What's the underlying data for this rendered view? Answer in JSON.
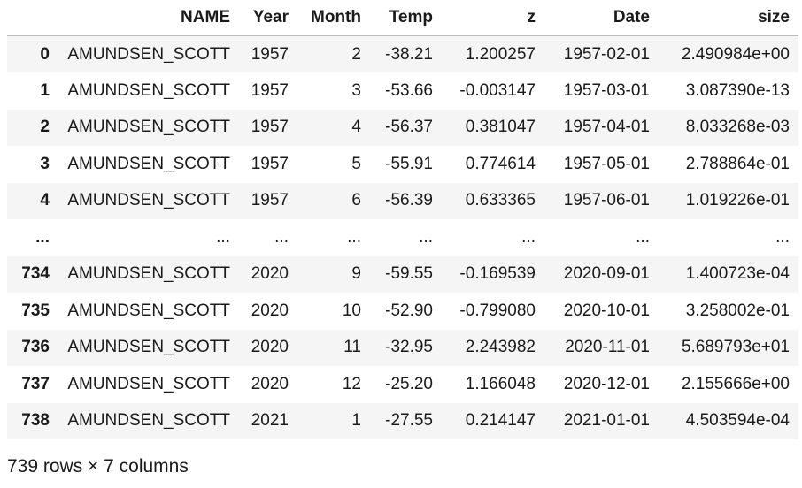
{
  "table": {
    "index_header": "",
    "columns": [
      "NAME",
      "Year",
      "Month",
      "Temp",
      "z",
      "Date",
      "size"
    ],
    "rows": [
      {
        "index": "0",
        "cells": [
          "AMUNDSEN_SCOTT",
          "1957",
          "2",
          "-38.21",
          "1.200257",
          "1957-02-01",
          "2.490984e+00"
        ]
      },
      {
        "index": "1",
        "cells": [
          "AMUNDSEN_SCOTT",
          "1957",
          "3",
          "-53.66",
          "-0.003147",
          "1957-03-01",
          "3.087390e-13"
        ]
      },
      {
        "index": "2",
        "cells": [
          "AMUNDSEN_SCOTT",
          "1957",
          "4",
          "-56.37",
          "0.381047",
          "1957-04-01",
          "8.033268e-03"
        ]
      },
      {
        "index": "3",
        "cells": [
          "AMUNDSEN_SCOTT",
          "1957",
          "5",
          "-55.91",
          "0.774614",
          "1957-05-01",
          "2.788864e-01"
        ]
      },
      {
        "index": "4",
        "cells": [
          "AMUNDSEN_SCOTT",
          "1957",
          "6",
          "-56.39",
          "0.633365",
          "1957-06-01",
          "1.019226e-01"
        ]
      },
      {
        "index": "...",
        "cells": [
          "...",
          "...",
          "...",
          "...",
          "...",
          "...",
          "..."
        ]
      },
      {
        "index": "734",
        "cells": [
          "AMUNDSEN_SCOTT",
          "2020",
          "9",
          "-59.55",
          "-0.169539",
          "2020-09-01",
          "1.400723e-04"
        ]
      },
      {
        "index": "735",
        "cells": [
          "AMUNDSEN_SCOTT",
          "2020",
          "10",
          "-52.90",
          "-0.799080",
          "2020-10-01",
          "3.258002e-01"
        ]
      },
      {
        "index": "736",
        "cells": [
          "AMUNDSEN_SCOTT",
          "2020",
          "11",
          "-32.95",
          "2.243982",
          "2020-11-01",
          "5.689793e+01"
        ]
      },
      {
        "index": "737",
        "cells": [
          "AMUNDSEN_SCOTT",
          "2020",
          "12",
          "-25.20",
          "1.166048",
          "2020-12-01",
          "2.155666e+00"
        ]
      },
      {
        "index": "738",
        "cells": [
          "AMUNDSEN_SCOTT",
          "2021",
          "1",
          "-27.55",
          "0.214147",
          "2021-01-01",
          "4.503594e-04"
        ]
      }
    ]
  },
  "footer": {
    "shape_text": "739 rows × 7 columns"
  }
}
